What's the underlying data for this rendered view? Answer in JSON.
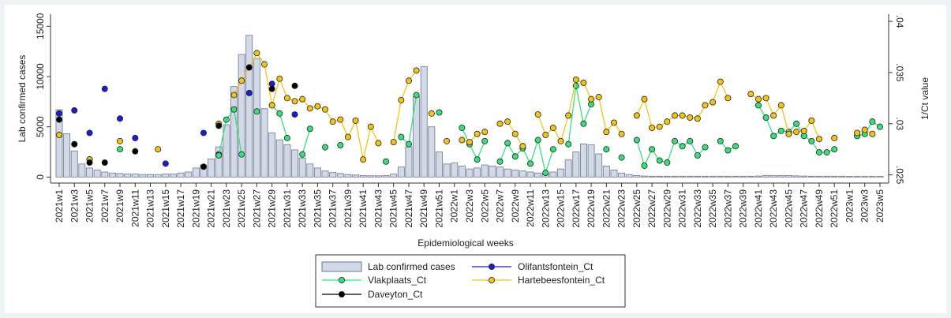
{
  "chart_data": {
    "type": "combo",
    "x_label": "Epidemiological weeks",
    "y_label": "Lab confirmed cases",
    "y2_label": "1/Ct value",
    "categories": [
      "2021w1",
      null,
      "2021w3",
      null,
      "2021w5",
      null,
      "2021w7",
      null,
      "2021w9",
      null,
      "2021w11",
      null,
      "2021w13",
      null,
      "2021w15",
      null,
      "2021w17",
      null,
      "2021w19",
      null,
      "2021w21",
      null,
      "2021w23",
      null,
      "2021w25",
      null,
      "2021w27",
      null,
      "2021w29",
      null,
      "2021w31",
      null,
      "2021w33",
      null,
      "2021w35",
      null,
      "2021w37",
      null,
      "2021w39",
      null,
      "2021w41",
      null,
      "2021w43",
      null,
      "2021w45",
      null,
      "2021w47",
      null,
      "2021w49",
      null,
      "2021w51",
      null,
      "2022w1",
      null,
      "2022w3",
      null,
      "2022w5",
      null,
      "2022w7",
      null,
      "2022w9",
      null,
      "2022w11",
      null,
      "2022w13",
      null,
      "2022w15",
      null,
      "2022w17",
      null,
      "2022w19",
      null,
      "2022w21",
      null,
      "2022w23",
      null,
      "2022w25",
      null,
      "2022w27",
      null,
      "2022w29",
      null,
      "2022w31",
      null,
      "2022w33",
      null,
      "2022w35",
      null,
      "2022w37",
      null,
      "2022w39",
      null,
      "2022w41",
      null,
      "2022w43",
      null,
      "2022w45",
      null,
      "2022w47",
      null,
      "2022w49",
      null,
      "2022w51",
      null,
      "2023w1",
      null,
      "2023w3",
      null,
      "2023w5"
    ],
    "ylim": [
      -600,
      16200
    ],
    "yticks": [
      0,
      5000,
      10000,
      15000
    ],
    "y2lim": [
      0.0242,
      0.0407
    ],
    "y2ticks": [
      {
        "value": 0.025,
        "label": ".025"
      },
      {
        "value": 0.03,
        "label": ".03"
      },
      {
        "value": 0.035,
        "label": ".035"
      },
      {
        "value": 0.04,
        "label": ".04"
      }
    ],
    "series": [
      {
        "name": "Lab confirmed cases",
        "type": "bar",
        "color": "#d3d9e6",
        "values": [
          6700,
          4300,
          2600,
          1300,
          900,
          700,
          500,
          400,
          350,
          300,
          300,
          250,
          250,
          250,
          300,
          300,
          400,
          500,
          900,
          1200,
          1800,
          3000,
          5200,
          9000,
          12200,
          14100,
          11800,
          6800,
          4400,
          3700,
          3200,
          2700,
          1900,
          1300,
          900,
          600,
          450,
          350,
          250,
          200,
          150,
          130,
          120,
          150,
          300,
          1000,
          3000,
          8000,
          11000,
          5000,
          2500,
          1300,
          1400,
          1100,
          800,
          900,
          1200,
          1100,
          1000,
          800,
          700,
          600,
          500,
          400,
          350,
          500,
          800,
          1700,
          2500,
          3300,
          3200,
          2300,
          1100,
          700,
          400,
          250,
          150,
          100,
          80,
          80,
          80,
          80,
          80,
          80,
          80,
          80,
          80,
          80,
          80,
          80,
          80,
          80,
          100,
          150,
          150,
          150,
          150,
          120,
          100,
          80,
          80,
          80,
          80,
          80,
          60,
          60,
          60,
          60,
          60
        ]
      },
      {
        "name": "Olifantsfontein_Ct",
        "type": "line",
        "axis": "y2",
        "color": "#1c1cd6",
        "values": [
          0.031,
          null,
          0.0313,
          null,
          0.0291,
          null,
          0.0334,
          null,
          0.0305,
          null,
          0.0286,
          null,
          null,
          null,
          0.0261,
          null,
          null,
          null,
          null,
          0.0291,
          null,
          0.027,
          null,
          null,
          null,
          0.033,
          null,
          null,
          0.0339,
          null,
          null,
          0.0309,
          null,
          null,
          null,
          null,
          null,
          null,
          null,
          null,
          null,
          null,
          null,
          null,
          null,
          null,
          null,
          null,
          null,
          null,
          null,
          null,
          null,
          null,
          null,
          null,
          null,
          null,
          null,
          null,
          null,
          null,
          null,
          null,
          null,
          null,
          null,
          null,
          null,
          null,
          null,
          null,
          null,
          null,
          null,
          null,
          null,
          null,
          null,
          null,
          null,
          null,
          null,
          null,
          null,
          null,
          null,
          null,
          null,
          null,
          null,
          null,
          null,
          null,
          null,
          null,
          null,
          null,
          null,
          null,
          null,
          null,
          null,
          null,
          null,
          null,
          null,
          null,
          null
        ]
      },
      {
        "name": "Vlakplaats_Ct",
        "type": "line",
        "axis": "y2",
        "color": "#38e07c",
        "values": [
          null,
          null,
          null,
          null,
          0.0265,
          null,
          null,
          null,
          0.0275,
          null,
          null,
          null,
          null,
          null,
          null,
          null,
          null,
          null,
          null,
          null,
          null,
          0.0269,
          0.0304,
          0.0314,
          0.027,
          null,
          0.0312,
          null,
          0.0318,
          0.031,
          0.0286,
          null,
          0.027,
          0.0295,
          null,
          0.0277,
          null,
          0.0279,
          null,
          null,
          null,
          null,
          null,
          0.0263,
          null,
          0.0287,
          0.028,
          0.0328,
          null,
          null,
          0.0311,
          null,
          null,
          0.0296,
          0.028,
          0.0265,
          0.0283,
          null,
          0.0263,
          0.0281,
          0.0268,
          0.0276,
          0.0261,
          0.0284,
          0.0252,
          0.0275,
          null,
          0.028,
          0.0337,
          0.03,
          0.0319,
          null,
          0.0275,
          null,
          0.0267,
          null,
          0.0284,
          0.0259,
          0.0275,
          0.0264,
          0.0262,
          0.0283,
          0.0278,
          0.0283,
          0.0269,
          0.0277,
          null,
          0.0283,
          0.0274,
          0.0278,
          null,
          null,
          0.0318,
          0.0306,
          0.0288,
          0.0293,
          0.0292,
          0.03,
          0.0288,
          0.0283,
          0.0272,
          0.0272,
          0.0275,
          null,
          null,
          0.0288,
          0.029,
          0.0302,
          0.0297
        ]
      },
      {
        "name": "Hartebeesfontein_Ct",
        "type": "line",
        "axis": "y2",
        "color": "#f2c41a",
        "values": [
          0.0289,
          null,
          0.028,
          null,
          0.0265,
          null,
          null,
          null,
          0.0283,
          null,
          null,
          null,
          null,
          0.0275,
          null,
          null,
          null,
          null,
          null,
          null,
          null,
          0.03,
          null,
          0.0328,
          0.0342,
          0.0355,
          0.0369,
          0.0358,
          0.0318,
          0.0344,
          0.0325,
          0.0322,
          0.0324,
          0.0315,
          0.0317,
          0.0314,
          0.0302,
          0.0304,
          0.0287,
          0.0303,
          0.0265,
          0.0297,
          0.0281,
          null,
          0.0282,
          0.0323,
          0.0342,
          0.0352,
          null,
          0.031,
          null,
          0.0283,
          null,
          0.0284,
          0.0282,
          0.029,
          0.0292,
          null,
          0.03,
          0.0302,
          0.029,
          0.0278,
          null,
          0.0309,
          0.0289,
          0.0296,
          0.0283,
          0.0308,
          0.0343,
          0.034,
          0.0324,
          0.0326,
          0.0292,
          0.0301,
          0.029,
          null,
          0.0308,
          0.0324,
          0.0296,
          0.0297,
          0.0302,
          0.0308,
          0.0308,
          0.0306,
          0.0305,
          0.0318,
          0.0321,
          0.0341,
          0.0325,
          null,
          null,
          0.0329,
          0.0324,
          0.0325,
          0.0308,
          0.0318,
          0.029,
          0.0292,
          0.0293,
          0.0303,
          0.0285,
          null,
          0.0286,
          null,
          null,
          0.0291,
          0.0294,
          0.029,
          null
        ]
      },
      {
        "name": "Daveyton_Ct",
        "type": "line",
        "axis": "y2",
        "color": "#000000",
        "values": [
          0.0304,
          null,
          0.028,
          null,
          0.0262,
          null,
          0.0262,
          null,
          null,
          null,
          0.0273,
          null,
          null,
          null,
          null,
          null,
          null,
          null,
          null,
          0.0258,
          null,
          0.0298,
          null,
          null,
          null,
          0.0355,
          null,
          null,
          0.0334,
          null,
          null,
          0.0337,
          null,
          null,
          null,
          null,
          null,
          null,
          null,
          null,
          null,
          null,
          null,
          null,
          null,
          null,
          null,
          null,
          null,
          null,
          null,
          null,
          null,
          null,
          null,
          null,
          null,
          null,
          null,
          null,
          null,
          null,
          null,
          null,
          null,
          null,
          null,
          null,
          null,
          null,
          null,
          null,
          null,
          null,
          null,
          null,
          null,
          null,
          null,
          null,
          null,
          null,
          null,
          null,
          null,
          null,
          null,
          null,
          null,
          null,
          null,
          null,
          null,
          null,
          null,
          null,
          null,
          null,
          null,
          null,
          null,
          null,
          null,
          null,
          null,
          null,
          null,
          null,
          null
        ]
      }
    ]
  }
}
